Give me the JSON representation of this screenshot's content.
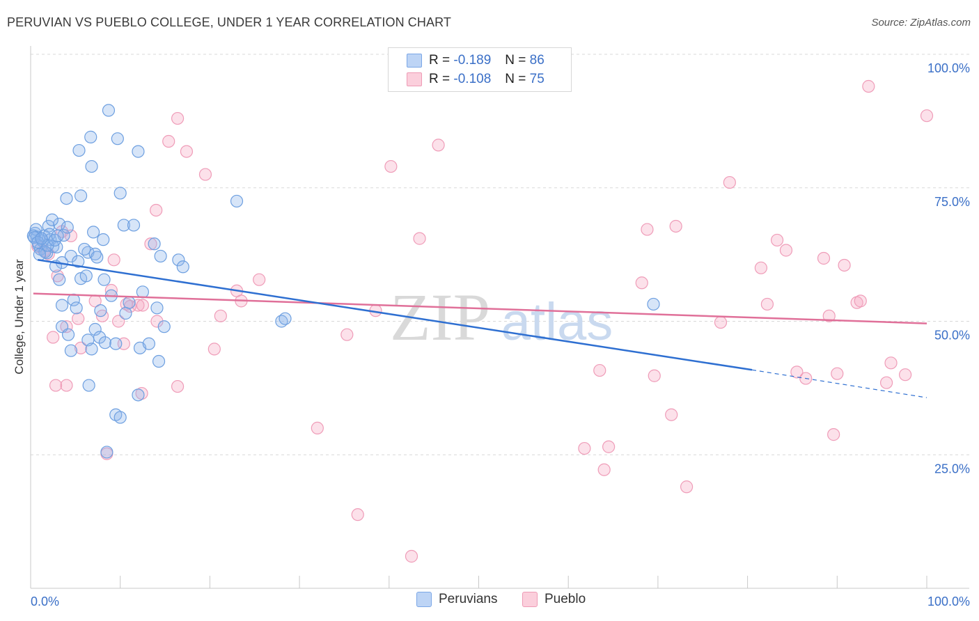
{
  "title": "PERUVIAN VS PUEBLO COLLEGE, UNDER 1 YEAR CORRELATION CHART",
  "source": "Source: ZipAtlas.com",
  "watermark": {
    "zip": "ZIP",
    "atlas": "atlas"
  },
  "colors": {
    "blue": "#6fa3e8",
    "blue_line": "#2e6fd1",
    "pink": "#f0a0ba",
    "pink_line": "#e07099",
    "value_text": "#3a6fc7",
    "grid": "#d8d8d8"
  },
  "legend": {
    "rows": [
      {
        "r_label": "R =",
        "r_value": "-0.189",
        "n_label": "N =",
        "n_value": "86"
      },
      {
        "r_label": "R =",
        "r_value": "-0.108",
        "n_label": "N =",
        "n_value": "75"
      }
    ]
  },
  "bottom_legend": {
    "peruvians": "Peruvians",
    "pueblo": "Pueblo"
  },
  "chart_data": {
    "type": "scatter",
    "title": "PERUVIAN VS PUEBLO COLLEGE, UNDER 1 YEAR CORRELATION CHART",
    "xlabel": "",
    "ylabel": "College, Under 1 year",
    "xlim": [
      0,
      100
    ],
    "ylim": [
      0,
      100
    ],
    "x_tick_labels": [
      "0.0%",
      "100.0%"
    ],
    "y_tick_labels": [
      "100.0%",
      "75.0%",
      "50.0%",
      "25.0%"
    ],
    "y_ticks": [
      100,
      75,
      50,
      25
    ],
    "grid": true,
    "legend_position": "top-center",
    "series": [
      {
        "name": "Peruvians",
        "R": -0.189,
        "N": 86,
        "trend": {
          "x0": 0.8,
          "y0": 61.5,
          "x1": 80.5,
          "y1": 40.9,
          "dash_to_x": 100,
          "dash_to_y": 35.7
        },
        "points": [
          [
            0.5,
            66.5
          ],
          [
            0.7,
            65.8
          ],
          [
            0.9,
            64.2
          ],
          [
            1.1,
            63.5
          ],
          [
            0.6,
            67.2
          ],
          [
            1.3,
            65.1
          ],
          [
            1.5,
            66.0
          ],
          [
            1.8,
            62.8
          ],
          [
            2.2,
            65.3
          ],
          [
            2.5,
            64.0
          ],
          [
            2.0,
            67.8
          ],
          [
            2.9,
            63.9
          ],
          [
            3.2,
            68.2
          ],
          [
            2.4,
            69.0
          ],
          [
            3.7,
            66.1
          ],
          [
            4.1,
            67.6
          ],
          [
            3.5,
            61.0
          ],
          [
            2.8,
            60.3
          ],
          [
            4.5,
            62.2
          ],
          [
            5.3,
            61.2
          ],
          [
            6.4,
            62.9
          ],
          [
            6.0,
            63.5
          ],
          [
            7.2,
            62.6
          ],
          [
            7.0,
            66.7
          ],
          [
            8.1,
            65.3
          ],
          [
            7.4,
            62.0
          ],
          [
            4.0,
            73.0
          ],
          [
            5.6,
            73.5
          ],
          [
            6.8,
            79.0
          ],
          [
            5.4,
            82.0
          ],
          [
            6.7,
            84.5
          ],
          [
            8.7,
            89.5
          ],
          [
            9.7,
            84.2
          ],
          [
            10.0,
            74.0
          ],
          [
            10.4,
            68.0
          ],
          [
            11.5,
            68.0
          ],
          [
            12.0,
            81.8
          ],
          [
            13.8,
            64.5
          ],
          [
            14.5,
            62.2
          ],
          [
            16.5,
            61.5
          ],
          [
            17.0,
            60.2
          ],
          [
            3.2,
            57.8
          ],
          [
            5.6,
            58.0
          ],
          [
            6.2,
            58.5
          ],
          [
            8.2,
            57.8
          ],
          [
            3.5,
            53.0
          ],
          [
            4.8,
            54.0
          ],
          [
            5.1,
            52.5
          ],
          [
            7.8,
            52.0
          ],
          [
            9.0,
            54.8
          ],
          [
            10.6,
            51.5
          ],
          [
            11.0,
            53.5
          ],
          [
            12.5,
            55.5
          ],
          [
            14.1,
            52.5
          ],
          [
            14.9,
            49.0
          ],
          [
            3.5,
            49.0
          ],
          [
            4.2,
            47.5
          ],
          [
            6.4,
            46.5
          ],
          [
            7.2,
            48.5
          ],
          [
            7.7,
            47.0
          ],
          [
            8.3,
            46.0
          ],
          [
            9.5,
            45.8
          ],
          [
            12.2,
            45.0
          ],
          [
            13.2,
            45.8
          ],
          [
            4.5,
            44.5
          ],
          [
            6.8,
            44.8
          ],
          [
            14.3,
            42.5
          ],
          [
            6.5,
            38.0
          ],
          [
            12.0,
            36.2
          ],
          [
            9.5,
            32.5
          ],
          [
            10.0,
            32.0
          ],
          [
            8.5,
            25.5
          ],
          [
            23.0,
            72.5
          ],
          [
            28.0,
            50.0
          ],
          [
            28.4,
            50.5
          ],
          [
            69.5,
            53.2
          ],
          [
            0.3,
            66.0
          ],
          [
            0.4,
            65.7
          ],
          [
            0.8,
            64.8
          ],
          [
            1.6,
            63.0
          ],
          [
            2.1,
            66.3
          ],
          [
            1.0,
            62.5
          ],
          [
            1.9,
            64.2
          ],
          [
            2.7,
            65.2
          ],
          [
            3.0,
            66.0
          ],
          [
            1.2,
            65.5
          ]
        ]
      },
      {
        "name": "Pueblo",
        "R": -0.108,
        "N": 75,
        "trend": {
          "x0": 0.3,
          "y0": 55.2,
          "x1": 100,
          "y1": 49.6
        },
        "points": [
          [
            0.8,
            64.0
          ],
          [
            1.5,
            63.2
          ],
          [
            2.0,
            62.6
          ],
          [
            3.5,
            66.8
          ],
          [
            4.5,
            66.0
          ],
          [
            10.7,
            53.2
          ],
          [
            11.1,
            52.8
          ],
          [
            12.0,
            53.0
          ],
          [
            13.4,
            64.5
          ],
          [
            14.1,
            50.0
          ],
          [
            9.0,
            55.8
          ],
          [
            9.3,
            61.5
          ],
          [
            7.2,
            53.8
          ],
          [
            5.3,
            50.5
          ],
          [
            2.5,
            47.0
          ],
          [
            4.0,
            49.0
          ],
          [
            5.6,
            45.0
          ],
          [
            8.0,
            51.0
          ],
          [
            9.8,
            50.0
          ],
          [
            10.4,
            45.8
          ],
          [
            12.5,
            53.0
          ],
          [
            14.0,
            70.8
          ],
          [
            15.4,
            83.7
          ],
          [
            16.4,
            88.0
          ],
          [
            17.4,
            81.8
          ],
          [
            19.5,
            77.5
          ],
          [
            16.4,
            37.8
          ],
          [
            12.4,
            36.5
          ],
          [
            4.0,
            38.0
          ],
          [
            8.5,
            25.2
          ],
          [
            20.5,
            44.8
          ],
          [
            21.2,
            51.0
          ],
          [
            23.0,
            55.7
          ],
          [
            23.5,
            53.8
          ],
          [
            25.5,
            57.8
          ],
          [
            3.0,
            58.5
          ],
          [
            2.8,
            38.0
          ],
          [
            35.3,
            47.5
          ],
          [
            38.5,
            52.0
          ],
          [
            32.0,
            30.0
          ],
          [
            36.5,
            13.8
          ],
          [
            40.2,
            79.0
          ],
          [
            43.4,
            65.5
          ],
          [
            45.5,
            83.0
          ],
          [
            42.5,
            6.0
          ],
          [
            61.8,
            26.2
          ],
          [
            64.0,
            22.2
          ],
          [
            64.5,
            26.5
          ],
          [
            63.5,
            40.8
          ],
          [
            68.2,
            57.2
          ],
          [
            68.8,
            67.2
          ],
          [
            69.6,
            39.8
          ],
          [
            72.0,
            67.8
          ],
          [
            71.5,
            32.5
          ],
          [
            73.2,
            19.0
          ],
          [
            77.0,
            49.8
          ],
          [
            78.0,
            76.0
          ],
          [
            81.5,
            60.0
          ],
          [
            82.2,
            53.2
          ],
          [
            83.3,
            65.2
          ],
          [
            84.3,
            63.3
          ],
          [
            85.5,
            40.5
          ],
          [
            86.5,
            39.3
          ],
          [
            88.5,
            61.8
          ],
          [
            89.1,
            51.0
          ],
          [
            89.6,
            28.8
          ],
          [
            90.0,
            40.2
          ],
          [
            90.8,
            60.5
          ],
          [
            92.2,
            53.5
          ],
          [
            92.6,
            53.8
          ],
          [
            93.5,
            94.0
          ],
          [
            95.5,
            38.5
          ],
          [
            96.0,
            42.2
          ],
          [
            97.6,
            40.0
          ],
          [
            100.0,
            88.5
          ]
        ]
      }
    ]
  }
}
